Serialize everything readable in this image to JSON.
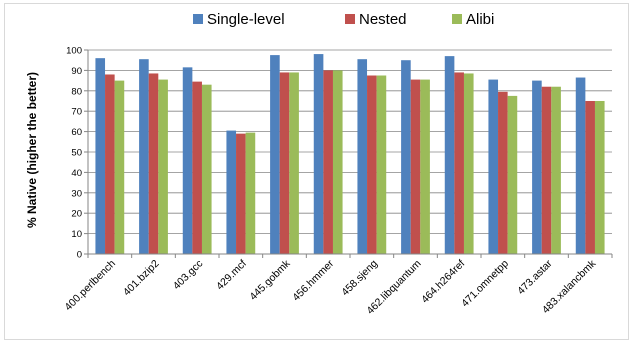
{
  "chart_data": {
    "type": "bar",
    "title": "",
    "xlabel": "",
    "ylabel": "% Native (higher the better)",
    "ylim": [
      0,
      100
    ],
    "yticks": [
      0,
      10,
      20,
      30,
      40,
      50,
      60,
      70,
      80,
      90,
      100
    ],
    "grid": true,
    "legend_position": "top",
    "categories": [
      "400.perlbench",
      "401.bzip2",
      "403.gcc",
      "429.mcf",
      "445.gobmk",
      "456.hmmer",
      "458.sjeng",
      "462.libquantum",
      "464.h264ref",
      "471.omnetpp",
      "473.astar",
      "483.xalancbmk"
    ],
    "series": [
      {
        "name": "Single-level",
        "color": "#4f81bd",
        "values": [
          96,
          95.5,
          91.5,
          60.5,
          97.5,
          98,
          95.5,
          95,
          97,
          85.5,
          85,
          86.5
        ]
      },
      {
        "name": "Nested",
        "color": "#c0504d",
        "values": [
          88,
          88.5,
          84.5,
          59,
          89,
          90,
          87.5,
          85.5,
          89,
          79.5,
          82,
          75
        ]
      },
      {
        "name": "Alibi",
        "color": "#9bbb59",
        "values": [
          85,
          85.5,
          83,
          59.5,
          89,
          90,
          87.5,
          85.5,
          88.5,
          77.5,
          82,
          75
        ]
      }
    ]
  }
}
